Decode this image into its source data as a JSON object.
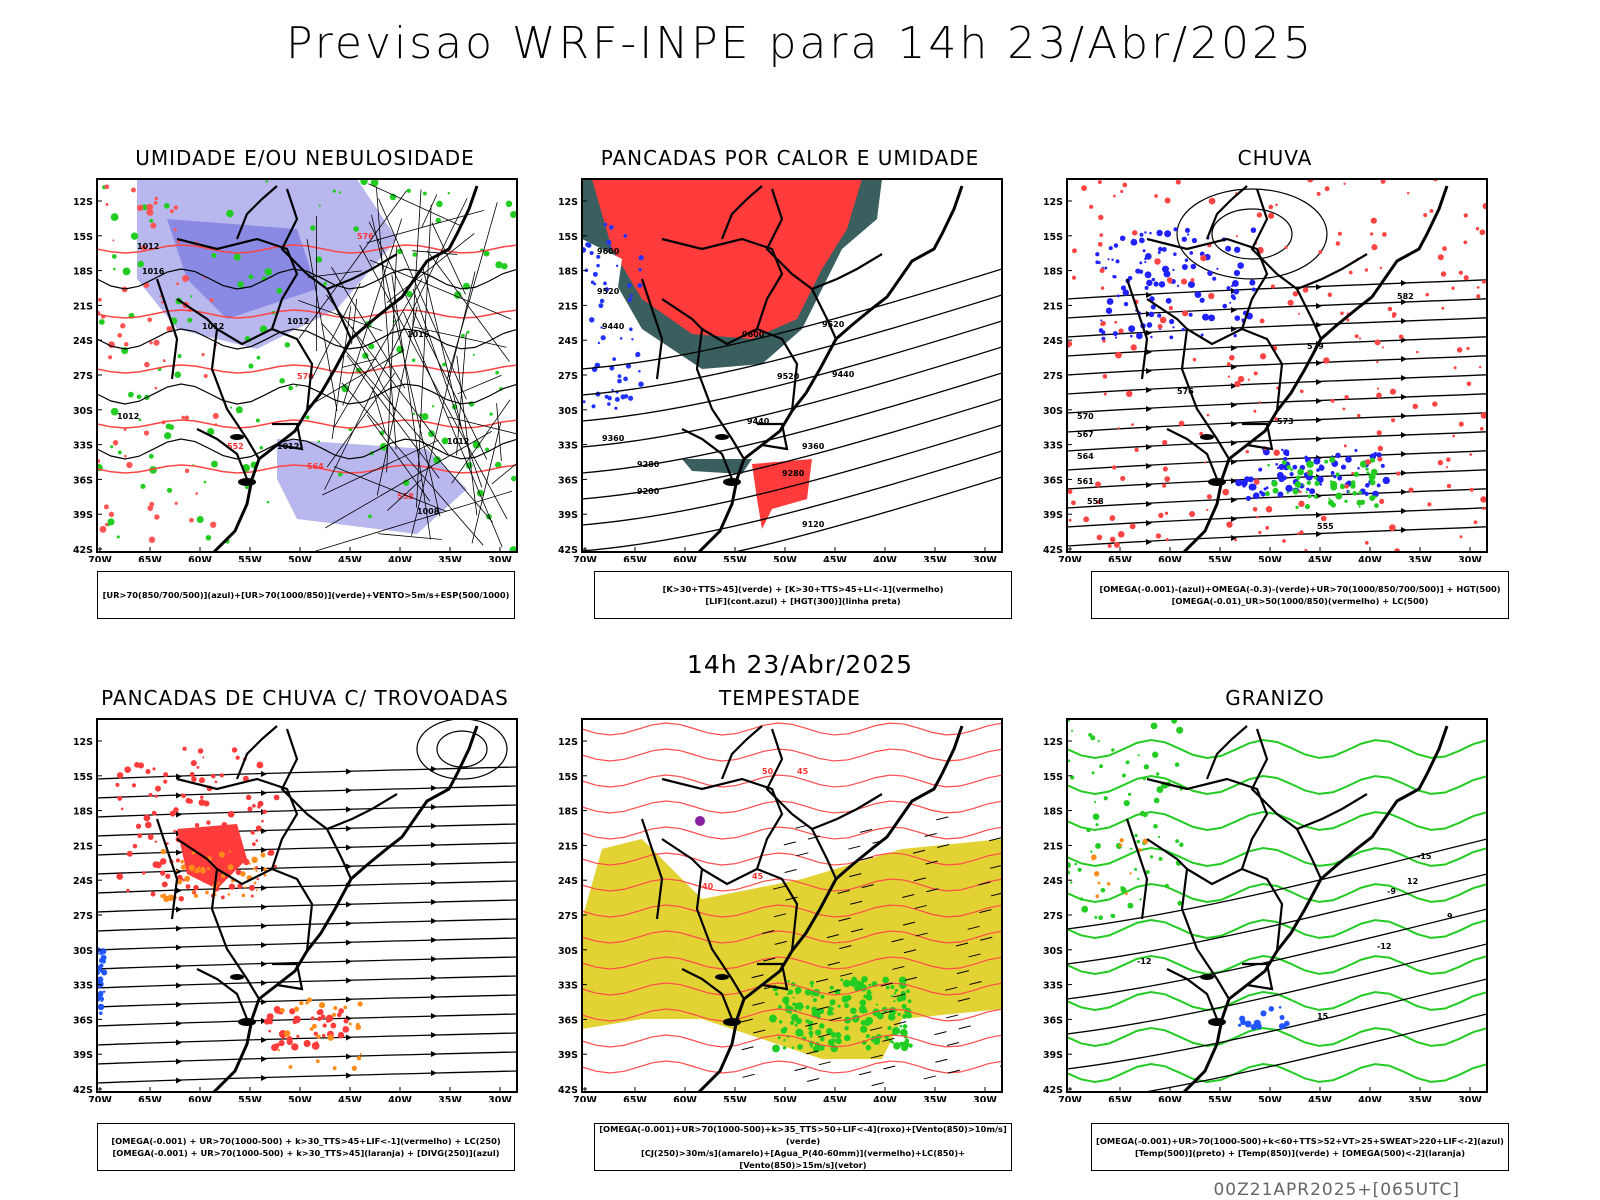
{
  "title": "Previsao WRF-INPE  para 14h 23/Abr/2025",
  "mid_time": "14h 23/Abr/2025",
  "footer": "00Z21APR2025+[065UTC]",
  "lat_labels": [
    "12S",
    "15S",
    "18S",
    "21S",
    "24S",
    "27S",
    "30S",
    "33S",
    "36S",
    "39S",
    "42S"
  ],
  "lon_labels": [
    "70W",
    "65W",
    "60W",
    "55W",
    "50W",
    "45W",
    "40W",
    "35W",
    "30W"
  ],
  "panels": [
    {
      "title": "UMIDADE E/OU NEBULOSIDADE",
      "legend": [
        "[UR>70(850/700/500)](azul)+[UR>70(1000/850)](verde)+VENTO>5m/s+ESP(500/1000)"
      ],
      "contour_labels": [
        "1012",
        "1016",
        "1012",
        "1012",
        "1016",
        "1012",
        "1012",
        "1012",
        "1008",
        "576",
        "570",
        "564",
        "558",
        "552"
      ]
    },
    {
      "title": "PANCADAS POR CALOR E UMIDADE",
      "legend": [
        "[K>30+TTS>45](verde) + [K>30+TTS>45+LI<-1](vermelho)",
        "[LIF](cont.azul) + [HGT(300)](linha preta)"
      ],
      "contour_labels": [
        "9600",
        "9520",
        "9440",
        "9600",
        "9520",
        "9440",
        "9360",
        "9280",
        "9200",
        "9120",
        "9520",
        "9440",
        "9360",
        "9280"
      ]
    },
    {
      "title": "CHUVA",
      "legend": [
        "[OMEGA(-0.001)-(azul)+OMEGA(-0.3)-(verde)+UR>70(1000/850/700/500)] + HGT(500)",
        "[OMEGA(-0.01)_UR>50(1000/850)(vermelho) + LC(500)"
      ],
      "contour_labels": [
        "582",
        "579",
        "576",
        "573",
        "570",
        "567",
        "564",
        "561",
        "558",
        "555"
      ]
    },
    {
      "title": "PANCADAS DE CHUVA C/ TROVOADAS",
      "legend": [
        "[OMEGA(-0.001) + UR>70(1000-500) + k>30_TTS>45+LIF<-1](vermelho) + LC(250)",
        "[OMEGA(-0.001) + UR>70(1000-500) + k>30_TTS>45](laranja) + [DIVG(250)](azul)"
      ],
      "contour_labels": []
    },
    {
      "title": "TEMPESTADE",
      "legend": [
        "[OMEGA(-0.001)+UR>70(1000-500)+k>35_TTS>50+LIF<-4](roxo)+[Vento(850)>10m/s](verde)",
        "[CJ(250)>30m/s](amarelo)+[Agua_P(40-60mm)](vermelho)+LC(850)+[Vento(850)>15m/s](vetor)"
      ],
      "contour_labels": [
        "50",
        "45",
        "40",
        "45"
      ]
    },
    {
      "title": "GRANIZO",
      "legend": [
        "[OMEGA(-0.001)+UR>70(1000-500)+k<60+TTS>52+VT>25+SWEAT>220+LIF<-2](azul)",
        "[Temp(500)](preto) + [Temp(850)](verde) + [OMEGA(500)<-2](laranja)"
      ],
      "contour_labels": [
        "-12",
        "-9",
        "-15",
        "-12",
        "12",
        "15",
        "9"
      ]
    }
  ]
}
